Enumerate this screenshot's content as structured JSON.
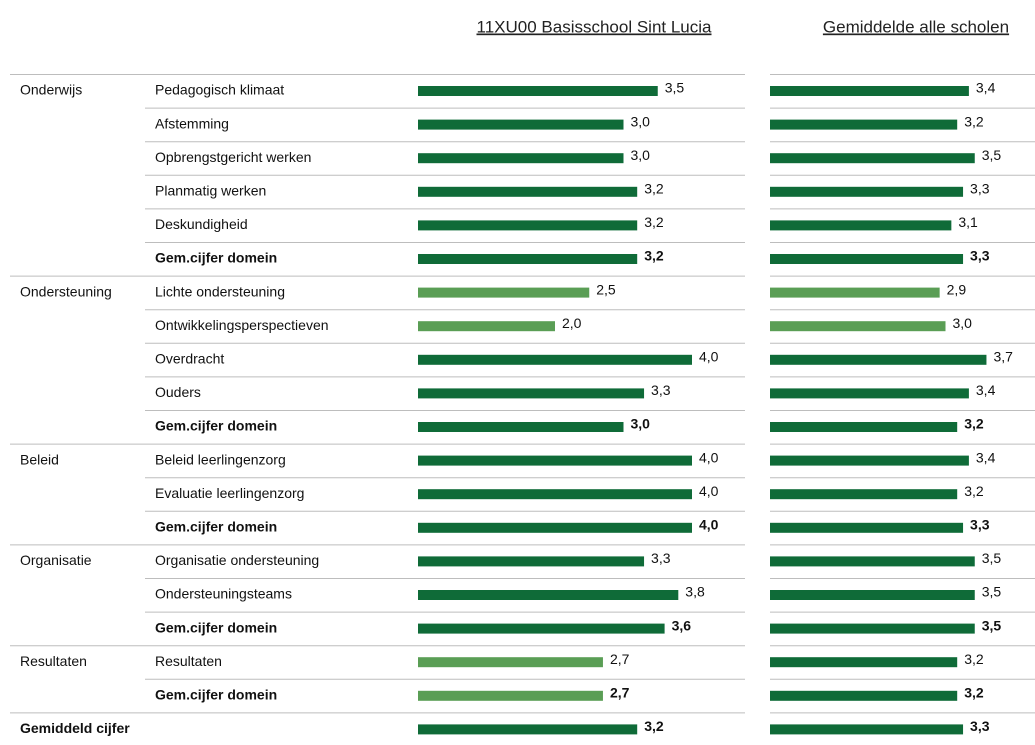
{
  "columns": [
    "11XU00 Basisschool Sint Lucia",
    "Gemiddelde alle scholen"
  ],
  "rows": [
    {
      "domain": "Onderwijs",
      "item": "Pedagogisch klimaat",
      "values": [
        3.5,
        3.4
      ],
      "value_labels": [
        "3,5",
        "3,4"
      ],
      "colors": [
        "#0f6b38",
        "#0f6b38"
      ],
      "bold": false
    },
    {
      "item": "Afstemming",
      "values": [
        3.0,
        3.2
      ],
      "value_labels": [
        "3,0",
        "3,2"
      ],
      "colors": [
        "#0f6b38",
        "#0f6b38"
      ],
      "bold": false
    },
    {
      "item": "Opbrengstgericht werken",
      "values": [
        3.0,
        3.5
      ],
      "value_labels": [
        "3,0",
        "3,5"
      ],
      "colors": [
        "#0f6b38",
        "#0f6b38"
      ],
      "bold": false
    },
    {
      "item": "Planmatig werken",
      "values": [
        3.2,
        3.3
      ],
      "value_labels": [
        "3,2",
        "3,3"
      ],
      "colors": [
        "#0f6b38",
        "#0f6b38"
      ],
      "bold": false
    },
    {
      "item": "Deskundigheid",
      "values": [
        3.2,
        3.1
      ],
      "value_labels": [
        "3,2",
        "3,1"
      ],
      "colors": [
        "#0f6b38",
        "#0f6b38"
      ],
      "bold": false
    },
    {
      "item": "Gem.cijfer domein",
      "values": [
        3.2,
        3.3
      ],
      "value_labels": [
        "3,2",
        "3,3"
      ],
      "colors": [
        "#0f6b38",
        "#0f6b38"
      ],
      "bold": true
    },
    {
      "domain": "Ondersteuning",
      "item": "Lichte ondersteuning",
      "values": [
        2.5,
        2.9
      ],
      "value_labels": [
        "2,5",
        "2,9"
      ],
      "colors": [
        "#5a9e55",
        "#5a9e55"
      ],
      "bold": false
    },
    {
      "item": "Ontwikkelingsperspectieven",
      "values": [
        2.0,
        3.0
      ],
      "value_labels": [
        "2,0",
        "3,0"
      ],
      "colors": [
        "#5a9e55",
        "#5a9e55"
      ],
      "bold": false
    },
    {
      "item": "Overdracht",
      "values": [
        4.0,
        3.7
      ],
      "value_labels": [
        "4,0",
        "3,7"
      ],
      "colors": [
        "#0f6b38",
        "#0f6b38"
      ],
      "bold": false
    },
    {
      "item": "Ouders",
      "values": [
        3.3,
        3.4
      ],
      "value_labels": [
        "3,3",
        "3,4"
      ],
      "colors": [
        "#0f6b38",
        "#0f6b38"
      ],
      "bold": false
    },
    {
      "item": "Gem.cijfer domein",
      "values": [
        3.0,
        3.2
      ],
      "value_labels": [
        "3,0",
        "3,2"
      ],
      "colors": [
        "#0f6b38",
        "#0f6b38"
      ],
      "bold": true
    },
    {
      "domain": "Beleid",
      "item": "Beleid leerlingenzorg",
      "values": [
        4.0,
        3.4
      ],
      "value_labels": [
        "4,0",
        "3,4"
      ],
      "colors": [
        "#0f6b38",
        "#0f6b38"
      ],
      "bold": false
    },
    {
      "item": "Evaluatie leerlingenzorg",
      "values": [
        4.0,
        3.2
      ],
      "value_labels": [
        "4,0",
        "3,2"
      ],
      "colors": [
        "#0f6b38",
        "#0f6b38"
      ],
      "bold": false
    },
    {
      "item": "Gem.cijfer domein",
      "values": [
        4.0,
        3.3
      ],
      "value_labels": [
        "4,0",
        "3,3"
      ],
      "colors": [
        "#0f6b38",
        "#0f6b38"
      ],
      "bold": true
    },
    {
      "domain": "Organisatie",
      "item": "Organisatie ondersteuning",
      "values": [
        3.3,
        3.5
      ],
      "value_labels": [
        "3,3",
        "3,5"
      ],
      "colors": [
        "#0f6b38",
        "#0f6b38"
      ],
      "bold": false
    },
    {
      "item": "Ondersteuningsteams",
      "values": [
        3.8,
        3.5
      ],
      "value_labels": [
        "3,8",
        "3,5"
      ],
      "colors": [
        "#0f6b38",
        "#0f6b38"
      ],
      "bold": false
    },
    {
      "item": "Gem.cijfer domein",
      "values": [
        3.6,
        3.5
      ],
      "value_labels": [
        "3,6",
        "3,5"
      ],
      "colors": [
        "#0f6b38",
        "#0f6b38"
      ],
      "bold": true
    },
    {
      "domain": "Resultaten",
      "item": "Resultaten",
      "values": [
        2.7,
        3.2
      ],
      "value_labels": [
        "2,7",
        "3,2"
      ],
      "colors": [
        "#5a9e55",
        "#0f6b38"
      ],
      "bold": false
    },
    {
      "item": "Gem.cijfer domein",
      "values": [
        2.7,
        3.2
      ],
      "value_labels": [
        "2,7",
        "3,2"
      ],
      "colors": [
        "#5a9e55",
        "#0f6b38"
      ],
      "bold": true
    },
    {
      "domain": "Gemiddeld cijfer",
      "values": [
        3.2,
        3.3
      ],
      "value_labels": [
        "3,2",
        "3,3"
      ],
      "colors": [
        "#0f6b38",
        "#0f6b38"
      ],
      "bold": true
    }
  ]
}
